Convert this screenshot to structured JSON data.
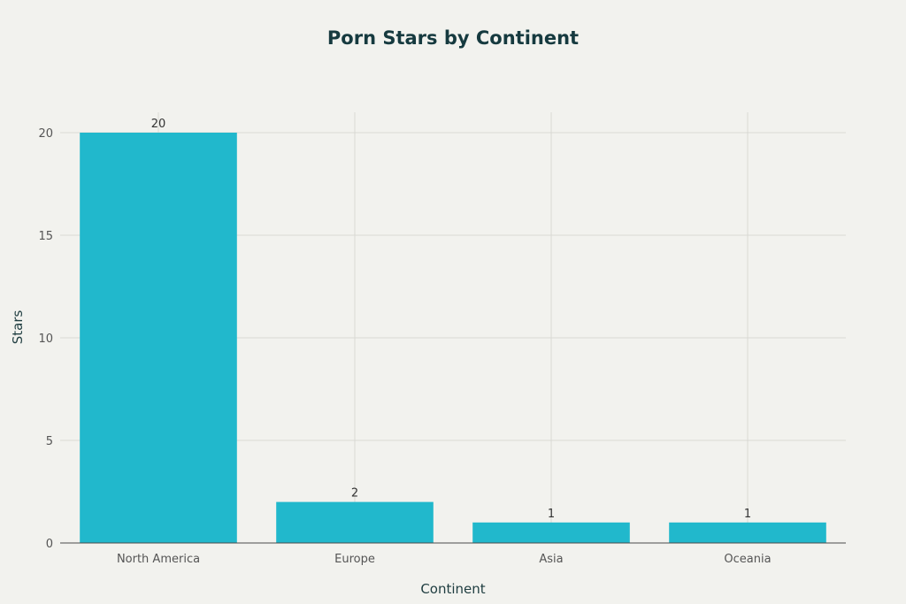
{
  "chart_data": {
    "type": "bar",
    "title": "Porn Stars by Continent",
    "xlabel": "Continent",
    "ylabel": "Stars",
    "categories": [
      "North America",
      "Europe",
      "Asia",
      "Oceania"
    ],
    "values": [
      20,
      2,
      1,
      1
    ],
    "data_labels": [
      "20",
      "2",
      "1",
      "1"
    ],
    "yticks": [
      0,
      5,
      10,
      15,
      20
    ],
    "ylim": [
      0,
      21
    ],
    "grid": true,
    "legend": "none",
    "bar_color": "#21b8cc"
  }
}
